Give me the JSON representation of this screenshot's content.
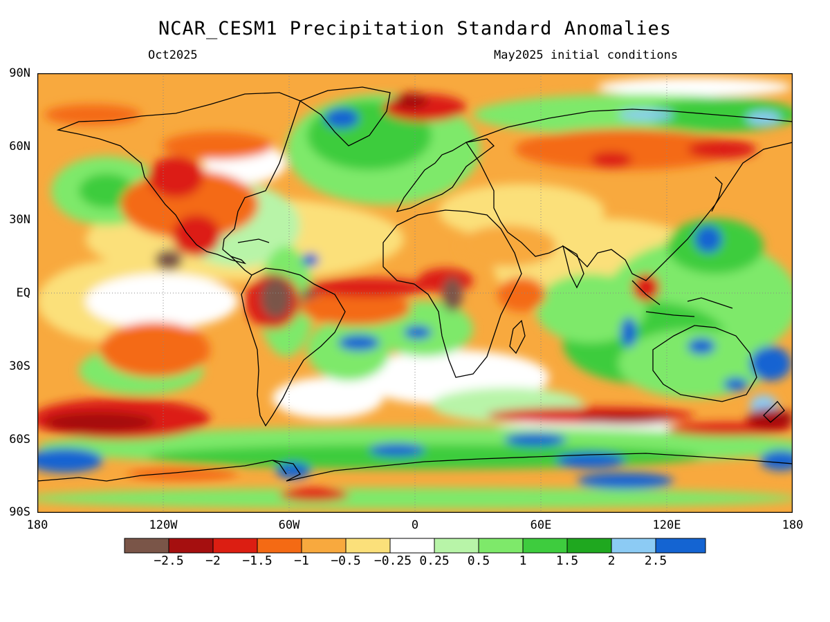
{
  "header": {
    "title": "NCAR_CESM1 Precipitation Standard Anomalies",
    "valid_time": "Oct2025",
    "init_conditions": "May2025 initial conditions"
  },
  "axes": {
    "lat_labels": [
      "90N",
      "60N",
      "30N",
      "EQ",
      "30S",
      "60S",
      "90S"
    ],
    "lon_labels": [
      "180",
      "120W",
      "60W",
      "0",
      "60E",
      "120E",
      "180"
    ]
  },
  "legend": {
    "colors": [
      "#7a5548",
      "#a50f0f",
      "#dc1e12",
      "#f46a14",
      "#f8a93e",
      "#fbe07a",
      "#ffffff",
      "#b8f4a8",
      "#7ee96a",
      "#3ecc3e",
      "#1fa81f",
      "#8ccbf4",
      "#1464d2"
    ],
    "labels": [
      "−2.5",
      "−2",
      "−1.5",
      "−1",
      "−0.5",
      "−0.25",
      "0.25",
      "0.5",
      "1",
      "1.5",
      "2",
      "2.5"
    ]
  },
  "map": {
    "background_color": "#f8a93e",
    "coastline_color": "#000000"
  }
}
